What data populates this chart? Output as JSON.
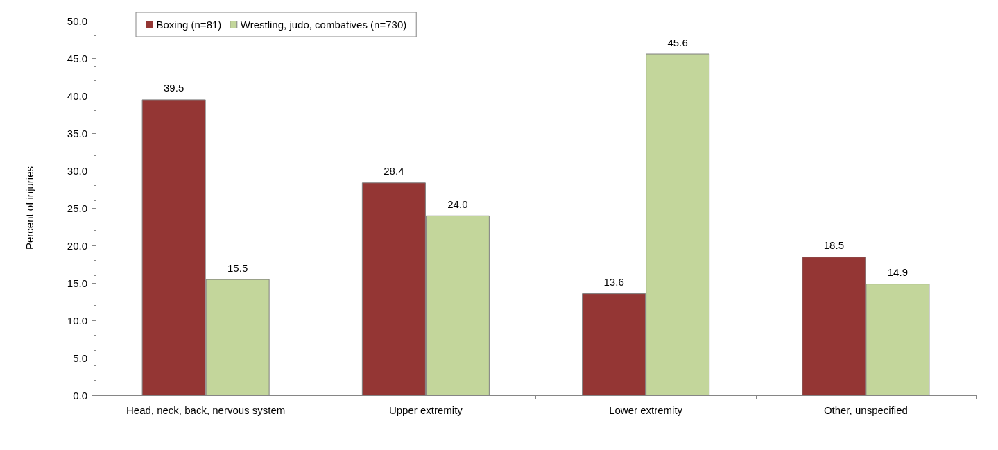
{
  "chart_data": {
    "type": "bar",
    "ylabel": "Percent of injuries",
    "categories": [
      "Head, neck, back, nervous system",
      "Upper extremity",
      "Lower extremity",
      "Other, unspecified"
    ],
    "series": [
      {
        "name": "Boxing (n=81)",
        "color": "#943634",
        "values": [
          39.5,
          28.4,
          13.6,
          18.5
        ],
        "value_labels": [
          "39.5",
          "28.4",
          "13.6",
          "18.5"
        ]
      },
      {
        "name": "Wrestling, judo, combatives (n=730)",
        "color": "#c3d69b",
        "values": [
          15.5,
          24.0,
          45.6,
          14.9
        ],
        "value_labels": [
          "15.5",
          "24.0",
          "45.6",
          "14.9"
        ]
      }
    ],
    "ylim": [
      0,
      50
    ],
    "yticks": [
      {
        "value": 0,
        "label": "0.0"
      },
      {
        "value": 5,
        "label": "5.0"
      },
      {
        "value": 10,
        "label": "10.0"
      },
      {
        "value": 15,
        "label": "15.0"
      },
      {
        "value": 20,
        "label": "20.0"
      },
      {
        "value": 25,
        "label": "25.0"
      },
      {
        "value": 30,
        "label": "30.0"
      },
      {
        "value": 35,
        "label": "35.0"
      },
      {
        "value": 40,
        "label": "40.0"
      },
      {
        "value": 45,
        "label": "45.0"
      },
      {
        "value": 50,
        "label": "50.0"
      }
    ],
    "legend": "top left",
    "grid": false
  }
}
